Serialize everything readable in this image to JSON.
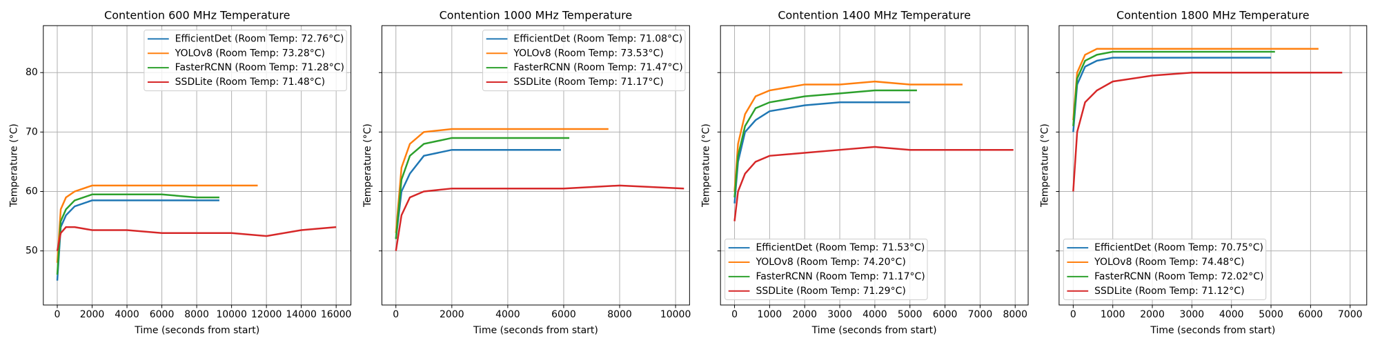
{
  "chart_data": [
    {
      "type": "line",
      "title": "Contention 600 MHz Temperature",
      "xlabel": "Time (seconds from start)",
      "ylabel": "Temperature (°C)",
      "xlim": [
        -800,
        16850
      ],
      "xticks": [
        0,
        2000,
        4000,
        6000,
        8000,
        10000,
        12000,
        14000,
        16000
      ],
      "ylim": [
        40.9,
        87.9
      ],
      "yticks": [
        50,
        60,
        70,
        80
      ],
      "ytick_labels": true,
      "grid": true,
      "legend": "upper right",
      "series": [
        {
          "name": "EfficientDet (Room Temp: 72.76°C)",
          "color": "#1f77b4",
          "x": [
            0,
            200,
            500,
            1000,
            2000,
            4000,
            6000,
            8000,
            9300
          ],
          "values": [
            45,
            54,
            56,
            57.5,
            58.5,
            58.5,
            58.5,
            58.5,
            58.5
          ]
        },
        {
          "name": "YOLOv8 (Room Temp: 73.28°C)",
          "color": "#ff7f0e",
          "x": [
            0,
            200,
            500,
            1000,
            2000,
            4000,
            6000,
            8000,
            10000,
            11500
          ],
          "values": [
            48,
            57,
            59,
            60,
            61,
            61,
            61,
            61,
            61,
            61
          ]
        },
        {
          "name": "FasterRCNN (Room Temp: 71.28°C)",
          "color": "#2ca02c",
          "x": [
            0,
            200,
            500,
            1000,
            2000,
            4000,
            6000,
            8000,
            9300
          ],
          "values": [
            46,
            55,
            57,
            58.5,
            59.5,
            59.5,
            59.5,
            59,
            59
          ]
        },
        {
          "name": "SSDLite (Room Temp: 71.48°C)",
          "color": "#d62728",
          "x": [
            0,
            200,
            500,
            1000,
            2000,
            4000,
            6000,
            8000,
            10000,
            12000,
            14000,
            16000
          ],
          "values": [
            50,
            53,
            54,
            54,
            53.5,
            53.5,
            53,
            53,
            53,
            52.5,
            53.5,
            54
          ]
        }
      ]
    },
    {
      "type": "line",
      "title": "Contention 1000 MHz Temperature",
      "xlabel": "Time (seconds from start)",
      "ylabel": "Temperature (°C)",
      "xlim": [
        -500,
        10500
      ],
      "xticks": [
        0,
        2000,
        4000,
        6000,
        8000,
        10000
      ],
      "ylim": [
        40.9,
        87.9
      ],
      "yticks": [
        50,
        60,
        70,
        80
      ],
      "ytick_labels": false,
      "grid": true,
      "legend": "upper right",
      "series": [
        {
          "name": "EfficientDet (Room Temp: 71.08°C)",
          "color": "#1f77b4",
          "x": [
            0,
            200,
            500,
            1000,
            2000,
            4000,
            5900
          ],
          "values": [
            52,
            60,
            63,
            66,
            67,
            67,
            67
          ]
        },
        {
          "name": "YOLOv8 (Room Temp: 73.53°C)",
          "color": "#ff7f0e",
          "x": [
            0,
            200,
            500,
            1000,
            2000,
            4000,
            6000,
            7600
          ],
          "values": [
            53,
            64,
            68,
            70,
            70.5,
            70.5,
            70.5,
            70.5
          ]
        },
        {
          "name": "FasterRCNN (Room Temp: 71.47°C)",
          "color": "#2ca02c",
          "x": [
            0,
            200,
            500,
            1000,
            2000,
            4000,
            6200
          ],
          "values": [
            52,
            62,
            66,
            68,
            69,
            69,
            69
          ]
        },
        {
          "name": "SSDLite (Room Temp: 71.17°C)",
          "color": "#d62728",
          "x": [
            0,
            200,
            500,
            1000,
            2000,
            4000,
            6000,
            8000,
            10300
          ],
          "values": [
            50,
            56,
            59,
            60,
            60.5,
            60.5,
            60.5,
            61,
            60.5
          ]
        }
      ]
    },
    {
      "type": "line",
      "title": "Contention 1400 MHz Temperature",
      "xlabel": "Time (seconds from start)",
      "ylabel": "Temperature (°C)",
      "xlim": [
        -400,
        8370
      ],
      "xticks": [
        0,
        1000,
        2000,
        3000,
        4000,
        5000,
        6000,
        7000,
        8000
      ],
      "ylim": [
        40.9,
        87.9
      ],
      "yticks": [
        50,
        60,
        70,
        80
      ],
      "ytick_labels": false,
      "grid": true,
      "legend": "lower left",
      "series": [
        {
          "name": "EfficientDet (Room Temp: 71.53°C)",
          "color": "#1f77b4",
          "x": [
            0,
            100,
            300,
            600,
            1000,
            2000,
            3000,
            4000,
            5000
          ],
          "values": [
            58,
            65,
            70,
            72,
            73.5,
            74.5,
            75,
            75,
            75
          ]
        },
        {
          "name": "YOLOv8 (Room Temp: 74.20°C)",
          "color": "#ff7f0e",
          "x": [
            0,
            100,
            300,
            600,
            1000,
            2000,
            3000,
            4000,
            5000,
            6500
          ],
          "values": [
            60,
            68,
            73,
            76,
            77,
            78,
            78,
            78.5,
            78,
            78
          ]
        },
        {
          "name": "FasterRCNN (Room Temp: 71.17°C)",
          "color": "#2ca02c",
          "x": [
            0,
            100,
            300,
            600,
            1000,
            2000,
            3000,
            4000,
            5200
          ],
          "values": [
            59,
            66,
            71,
            74,
            75,
            76,
            76.5,
            77,
            77
          ]
        },
        {
          "name": "SSDLite (Room Temp: 71.29°C)",
          "color": "#d62728",
          "x": [
            0,
            100,
            300,
            600,
            1000,
            2000,
            3000,
            4000,
            5000,
            6000,
            7950
          ],
          "values": [
            55,
            60,
            63,
            65,
            66,
            66.5,
            67,
            67.5,
            67,
            67,
            67
          ]
        }
      ]
    },
    {
      "type": "line",
      "title": "Contention 1800 MHz Temperature",
      "xlabel": "Time (seconds from start)",
      "ylabel": "Temperature (°C)",
      "xlim": [
        -357,
        7420
      ],
      "xticks": [
        0,
        1000,
        2000,
        3000,
        4000,
        5000,
        6000,
        7000
      ],
      "ylim": [
        40.9,
        87.9
      ],
      "yticks": [
        50,
        60,
        70,
        80
      ],
      "ytick_labels": false,
      "grid": true,
      "legend": "lower left",
      "series": [
        {
          "name": "EfficientDet (Room Temp: 70.75°C)",
          "color": "#1f77b4",
          "x": [
            0,
            100,
            300,
            600,
            1000,
            2000,
            3000,
            4000,
            5000
          ],
          "values": [
            70,
            78,
            81,
            82,
            82.5,
            82.5,
            82.5,
            82.5,
            82.5
          ]
        },
        {
          "name": "YOLOv8 (Room Temp: 74.48°C)",
          "color": "#ff7f0e",
          "x": [
            0,
            100,
            300,
            600,
            1000,
            2000,
            3000,
            4000,
            5000,
            6200
          ],
          "values": [
            72,
            80,
            83,
            84,
            84,
            84,
            84,
            84,
            84,
            84
          ]
        },
        {
          "name": "FasterRCNN (Room Temp: 72.02°C)",
          "color": "#2ca02c",
          "x": [
            0,
            100,
            300,
            600,
            1000,
            2000,
            3000,
            4000,
            5100
          ],
          "values": [
            71,
            79,
            82,
            83,
            83.5,
            83.5,
            83.5,
            83.5,
            83.5
          ]
        },
        {
          "name": "SSDLite (Room Temp: 71.12°C)",
          "color": "#d62728",
          "x": [
            0,
            100,
            300,
            600,
            1000,
            2000,
            3000,
            4000,
            5000,
            6000,
            6800
          ],
          "values": [
            60,
            70,
            75,
            77,
            78.5,
            79.5,
            80,
            80,
            80,
            80,
            80
          ]
        }
      ]
    }
  ]
}
